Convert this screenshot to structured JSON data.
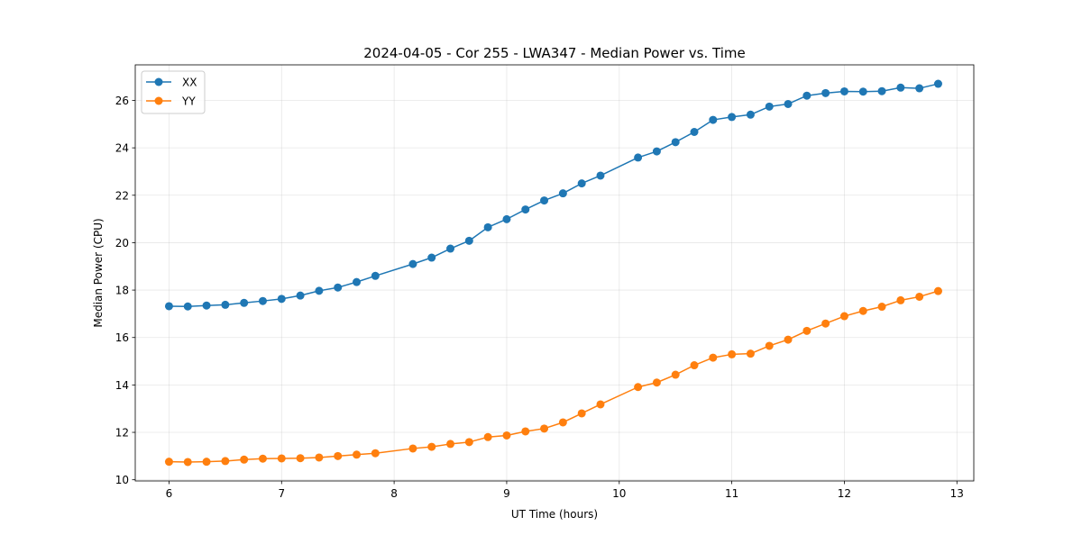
{
  "chart_data": {
    "type": "line",
    "title": "2024-04-05 - Cor 255 - LWA347 - Median Power vs. Time",
    "xlabel": "UT Time (hours)",
    "ylabel": "Median Power (CPU)",
    "xlim": [
      5.7,
      13.15
    ],
    "ylim": [
      9.95,
      27.5
    ],
    "xticks": [
      6,
      7,
      8,
      9,
      10,
      11,
      12,
      13
    ],
    "yticks": [
      10,
      12,
      14,
      16,
      18,
      20,
      22,
      24,
      26
    ],
    "grid": true,
    "legend_position": "upper-left",
    "x": [
      6.0,
      6.1667,
      6.3333,
      6.5,
      6.6667,
      6.8333,
      7.0,
      7.1667,
      7.3333,
      7.5,
      7.6667,
      7.8333,
      8.1667,
      8.3333,
      8.5,
      8.6667,
      8.8333,
      9.0,
      9.1667,
      9.3333,
      9.5,
      9.6667,
      9.8333,
      10.1667,
      10.3333,
      10.5,
      10.6667,
      10.8333,
      11.0,
      11.1667,
      11.3333,
      11.5,
      11.6667,
      11.8333,
      12.0,
      12.1667,
      12.3333,
      12.5,
      12.6667,
      12.8333
    ],
    "series": [
      {
        "name": "XX",
        "color": "#1f77b4",
        "values": [
          17.32,
          17.31,
          17.35,
          17.38,
          17.46,
          17.54,
          17.63,
          17.77,
          17.97,
          18.11,
          18.34,
          18.6,
          19.1,
          19.37,
          19.75,
          20.08,
          20.65,
          20.99,
          21.4,
          21.78,
          22.08,
          22.5,
          22.83,
          23.59,
          23.85,
          24.24,
          24.67,
          25.18,
          25.3,
          25.4,
          25.74,
          25.85,
          26.2,
          26.31,
          26.38,
          26.37,
          26.39,
          26.54,
          26.51,
          26.7
        ]
      },
      {
        "name": "YY",
        "color": "#ff7f0e",
        "values": [
          10.76,
          10.75,
          10.76,
          10.79,
          10.85,
          10.89,
          10.9,
          10.91,
          10.94,
          11.0,
          11.06,
          11.12,
          11.32,
          11.39,
          11.51,
          11.59,
          11.8,
          11.87,
          12.04,
          12.16,
          12.42,
          12.8,
          13.18,
          13.91,
          14.1,
          14.43,
          14.83,
          15.15,
          15.29,
          15.32,
          15.65,
          15.91,
          16.28,
          16.59,
          16.9,
          17.12,
          17.3,
          17.57,
          17.72,
          17.96
        ]
      }
    ]
  }
}
